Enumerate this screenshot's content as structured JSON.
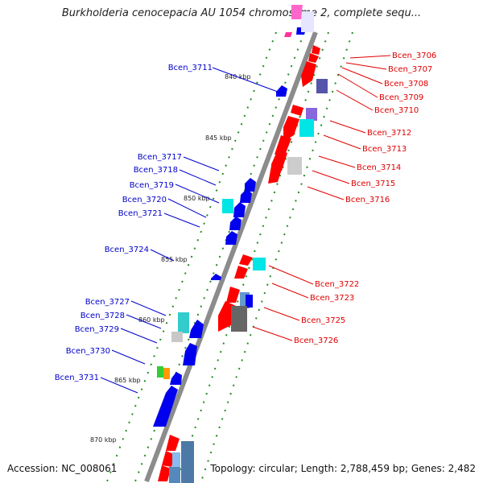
{
  "title": "Burkholderia cenocepacia AU 1054 chromosome 2, complete sequ...",
  "footer": {
    "accession": "Accession: NC_008061",
    "summary": "Topology: circular; Length: 2,788,459 bp; Genes: 2,482"
  },
  "colors": {
    "forward_label": "#e00000",
    "reverse_label": "#0000cc",
    "backbone": "#8c8c8c",
    "tick": "#228b22"
  },
  "kbp_markers": [
    "840 kbp",
    "845 kbp",
    "850 kbp",
    "855 kbp",
    "860 kbp",
    "865 kbp",
    "870 kbp"
  ],
  "reverse_genes": [
    "Bcen_3711",
    "Bcen_3717",
    "Bcen_3718",
    "Bcen_3719",
    "Bcen_3720",
    "Bcen_3721",
    "Bcen_3724",
    "Bcen_3727",
    "Bcen_3728",
    "Bcen_3729",
    "Bcen_3730",
    "Bcen_3731"
  ],
  "forward_genes": [
    "Bcen_3706",
    "Bcen_3707",
    "Bcen_3708",
    "Bcen_3709",
    "Bcen_3710",
    "Bcen_3712",
    "Bcen_3713",
    "Bcen_3714",
    "Bcen_3715",
    "Bcen_3716",
    "Bcen_3722",
    "Bcen_3723",
    "Bcen_3725",
    "Bcen_3726"
  ]
}
